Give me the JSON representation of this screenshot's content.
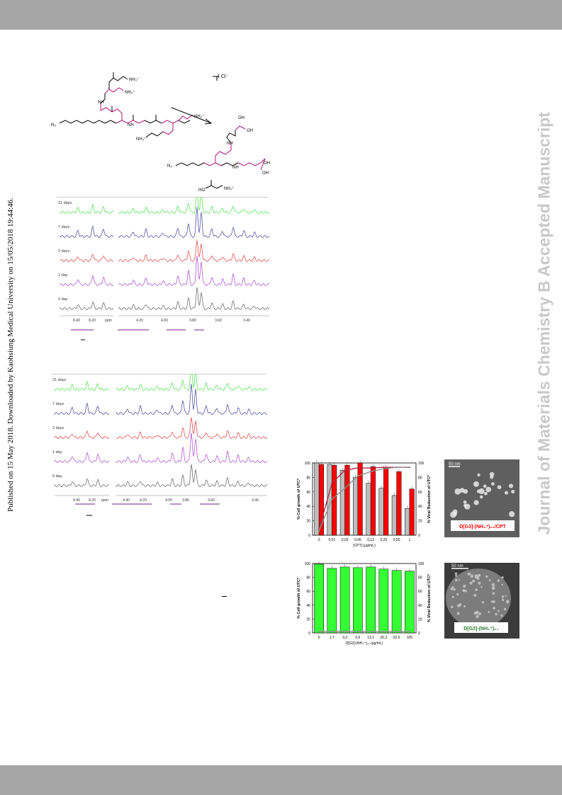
{
  "sidebar": {
    "published": "Published on 15 May 2018. Downloaded by Kaohsiung Medical University on 15/05/2018 19:44:46.",
    "journal": "Journal of Materials Chemistry B Accepted Manuscript"
  },
  "scheme": {
    "counterion": "4 Cl⁻",
    "ammonium": "NH₃⁺",
    "azide": "N₃",
    "amide": "NH",
    "hydroxyl": "OH",
    "glycine": "HO",
    "oxygen": "O"
  },
  "nmr_top": {
    "traces": [
      "21 days",
      "7 days",
      "2 days",
      "1 day",
      "0 day"
    ],
    "colors": [
      "#59e75a",
      "#5656a8",
      "#e85050",
      "#b458d4",
      "#707070"
    ],
    "axis_ticks": [
      "8.40",
      "8.20",
      "ppm",
      "4.20",
      "4.00",
      "3.80",
      "3.60",
      "3.40"
    ]
  },
  "nmr_bottom": {
    "traces": [
      "21 days",
      "7 days",
      "2 days",
      "1 day",
      "0 day"
    ],
    "colors": [
      "#59e75a",
      "#5656a8",
      "#e85050",
      "#b458d4",
      "#707070"
    ],
    "axis_ticks": [
      "8.40",
      "8.20",
      "ppm",
      "4.40",
      "4.20",
      "4.00",
      "3.80",
      "3.60",
      "3.40"
    ]
  },
  "tem": {
    "top_scale": "50 nm",
    "top_label": "D[G3]-(NH₃⁺)₂₄/CPT",
    "bottom_scale": "50 nm",
    "bottom_label": "D[G3]-(NH₃⁺)₂₄"
  },
  "chart_data": [
    {
      "type": "bar",
      "categories": [
        "0",
        "0,01",
        "0,03",
        "0,06",
        "0,12",
        "0,25",
        "0,50",
        "1"
      ],
      "xlabel": "[CPT] (μg/mL)",
      "ylabel": "% Cell growth of UTC*",
      "y2label": "% Viral Reduction of UTC*",
      "ylim": [
        0,
        100
      ],
      "yticks": [
        "0",
        "20",
        "40",
        "60",
        "80",
        "100"
      ],
      "series": [
        {
          "color": "#bdbdbd",
          "values": [
            100,
            98,
            90,
            80,
            72,
            65,
            55,
            37
          ]
        },
        {
          "color": "#ff0000",
          "values": [
            98,
            97,
            97,
            100,
            95,
            93,
            88,
            64
          ]
        }
      ],
      "lines": [
        {
          "color": "#b02a48",
          "values": [
            8,
            72,
            90,
            93,
            93,
            94,
            94,
            94
          ]
        },
        {
          "color": "#909090",
          "values": [
            6,
            50,
            65,
            82,
            88,
            92,
            94,
            94
          ]
        }
      ]
    },
    {
      "type": "bar",
      "categories": [
        "0",
        "1,7",
        "3,3",
        "6,6",
        "13,1",
        "26,2",
        "52,5",
        "105"
      ],
      "xlabel": "D[G3]-(NH₃⁺)₂₄ (μg/mL)",
      "ylabel": "% Cell growth of UTC*",
      "y2label": "% Viral Reduction of UTC*",
      "ylim": [
        0,
        100
      ],
      "yticks": [
        "0",
        "20",
        "40",
        "60",
        "80",
        "100"
      ],
      "series": [
        {
          "color": "#33ff33",
          "values": [
            99,
            93,
            95,
            94,
            95,
            92,
            90,
            89
          ]
        }
      ],
      "lines": [
        {
          "color": "#909090",
          "values": [
            2,
            2,
            2,
            2,
            2,
            2,
            2,
            2
          ]
        }
      ]
    }
  ]
}
